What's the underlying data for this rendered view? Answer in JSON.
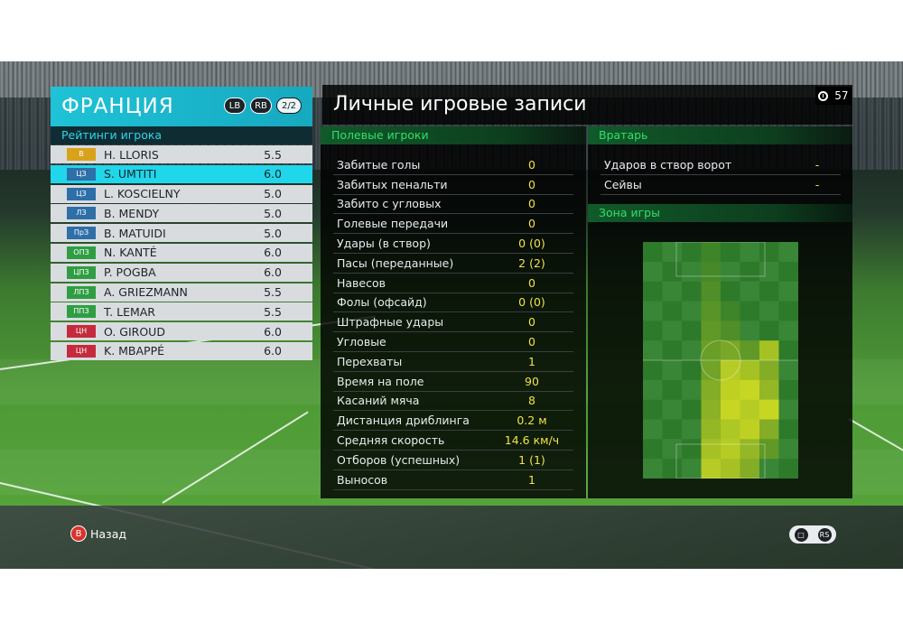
{
  "team": {
    "name": "ФРАНЦИЯ",
    "lb_label": "LB",
    "rb_label": "RB",
    "page_indicator": "2/2",
    "ratings_title": "Рейтинги игрока"
  },
  "players": [
    {
      "pos": "В",
      "pos_color": "#d9a21b",
      "name": "H. LLORIS",
      "rating": "5.5",
      "selected": false
    },
    {
      "pos": "ЦЗ",
      "pos_color": "#2e6fa8",
      "name": "S. UMTITI",
      "rating": "6.0",
      "selected": true
    },
    {
      "pos": "ЦЗ",
      "pos_color": "#2e6fa8",
      "name": "L. KOSCIELNY",
      "rating": "5.0",
      "selected": false
    },
    {
      "pos": "ЛЗ",
      "pos_color": "#2e6fa8",
      "name": "B. MENDY",
      "rating": "5.0",
      "selected": false
    },
    {
      "pos": "ПрЗ",
      "pos_color": "#2e6fa8",
      "name": "B. MATUIDI",
      "rating": "5.0",
      "selected": false
    },
    {
      "pos": "ОПЗ",
      "pos_color": "#2f9e43",
      "name": "N. KANTÉ",
      "rating": "6.0",
      "selected": false
    },
    {
      "pos": "ЦПЗ",
      "pos_color": "#2f9e43",
      "name": "P. POGBA",
      "rating": "6.0",
      "selected": false
    },
    {
      "pos": "ЛПЗ",
      "pos_color": "#2f9e43",
      "name": "A. GRIEZMANN",
      "rating": "5.5",
      "selected": false
    },
    {
      "pos": "ППЗ",
      "pos_color": "#2f9e43",
      "name": "T. LEMAR",
      "rating": "5.5",
      "selected": false
    },
    {
      "pos": "ЦН",
      "pos_color": "#c52b3c",
      "name": "O. GIROUD",
      "rating": "6.0",
      "selected": false
    },
    {
      "pos": "ЦН",
      "pos_color": "#c52b3c",
      "name": "K. MBAPPÉ",
      "rating": "6.0",
      "selected": false
    }
  ],
  "main": {
    "title": "Личные игровые записи",
    "clock_value": "57"
  },
  "field_players": {
    "header": "Полевые игроки",
    "stats": [
      {
        "label": "Забитые голы",
        "value": "0"
      },
      {
        "label": "Забитых пенальти",
        "value": "0"
      },
      {
        "label": "Забито с угловых",
        "value": "0"
      },
      {
        "label": "Голевые передачи",
        "value": "0"
      },
      {
        "label": "Удары (в створ)",
        "value": "0 (0)"
      },
      {
        "label": "Пасы (переданные)",
        "value": "2 (2)"
      },
      {
        "label": "Навесов",
        "value": "0"
      },
      {
        "label": "Фолы (офсайд)",
        "value": "0 (0)"
      },
      {
        "label": "Штрафные удары",
        "value": "0"
      },
      {
        "label": "Угловые",
        "value": "0"
      },
      {
        "label": "Перехваты",
        "value": "1"
      },
      {
        "label": "Время на поле",
        "value": "90"
      },
      {
        "label": "Касаний мяча",
        "value": "8"
      },
      {
        "label": "Дистанция дриблинга",
        "value": "0.2 м"
      },
      {
        "label": "Средняя скорость",
        "value": "14.6 км/ч"
      },
      {
        "label": "Отборов (успешных)",
        "value": "1 (1)"
      },
      {
        "label": "Выносов",
        "value": "1"
      }
    ]
  },
  "goalkeeper": {
    "header": "Вратарь",
    "stats": [
      {
        "label": "Ударов в створ ворот",
        "value": "-"
      },
      {
        "label": "Сейвы",
        "value": "-"
      }
    ],
    "zone_header": "Зона игры"
  },
  "zone_heatmap": {
    "cols": 8,
    "rows": 12,
    "intensity": [
      [
        0,
        0,
        0,
        0.1,
        0,
        0,
        0,
        0
      ],
      [
        0,
        0,
        0,
        0.15,
        0,
        0,
        0,
        0
      ],
      [
        0,
        0,
        0,
        0.2,
        0,
        0,
        0,
        0
      ],
      [
        0,
        0,
        0,
        0.25,
        0.1,
        0,
        0,
        0
      ],
      [
        0,
        0,
        0,
        0.3,
        0.2,
        0,
        0,
        0
      ],
      [
        0,
        0,
        0,
        0.35,
        0.45,
        0.3,
        0.7,
        0
      ],
      [
        0,
        0,
        0,
        0.4,
        0.8,
        0.7,
        0.5,
        0
      ],
      [
        0,
        0,
        0,
        0.5,
        0.85,
        0.9,
        0.6,
        0
      ],
      [
        0,
        0,
        0,
        0.55,
        0.9,
        0.8,
        0.9,
        0
      ],
      [
        0,
        0,
        0,
        0.6,
        0.75,
        0.85,
        0.5,
        0
      ],
      [
        0,
        0,
        0,
        0.7,
        0.8,
        0.6,
        0.3,
        0
      ],
      [
        0,
        0,
        0,
        0.8,
        0.7,
        0.5,
        0,
        0
      ]
    ],
    "base_color": "#2d7a2a",
    "hot_color": "#d8e022"
  },
  "footer": {
    "back_badge": "B",
    "back_label": "Назад",
    "icon_chat": "chat-icon",
    "icon_rs": "RS"
  }
}
